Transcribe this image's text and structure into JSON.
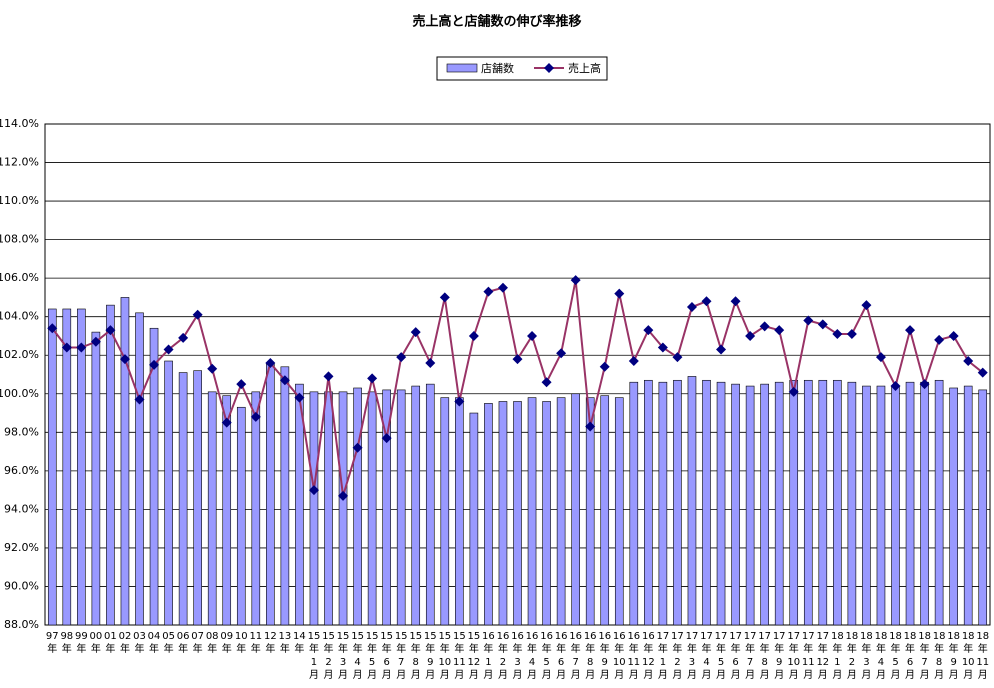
{
  "chart_data": {
    "type": "bar-line",
    "title": "売上高と店舗数の伸び率推移",
    "categories": [
      "97年",
      "98年",
      "99年",
      "00年",
      "01年",
      "02年",
      "03年",
      "04年",
      "05年",
      "06年",
      "07年",
      "08年",
      "09年",
      "10年",
      "11年",
      "12年",
      "13年",
      "14年",
      "15年1月",
      "15年2月",
      "15年3月",
      "15年4月",
      "15年5月",
      "15年6月",
      "15年7月",
      "15年8月",
      "15年9月",
      "15年10月",
      "15年11月",
      "15年12月",
      "16年1月",
      "16年2月",
      "16年3月",
      "16年4月",
      "16年5月",
      "16年6月",
      "16年7月",
      "16年8月",
      "16年9月",
      "16年10月",
      "16年11月",
      "16年12月",
      "17年1月",
      "17年2月",
      "17年3月",
      "17年4月",
      "17年5月",
      "17年6月",
      "17年7月",
      "17年8月",
      "17年9月",
      "17年10月",
      "17年11月",
      "17年12月",
      "18年1月",
      "18年2月",
      "18年3月",
      "18年4月",
      "18年5月",
      "18年6月",
      "18年7月",
      "18年8月",
      "18年9月",
      "18年10月",
      "18年11月"
    ],
    "series": [
      {
        "name": "店舗数",
        "kind": "bar",
        "color": "#9999ff",
        "values": [
          104.4,
          104.4,
          104.4,
          103.2,
          104.6,
          105.0,
          104.2,
          103.4,
          101.7,
          101.1,
          101.2,
          100.1,
          99.9,
          99.3,
          100.1,
          101.6,
          101.4,
          100.5,
          100.1,
          100.1,
          100.1,
          100.3,
          100.1,
          100.2,
          100.2,
          100.4,
          100.5,
          99.8,
          99.8,
          99.0,
          99.5,
          99.6,
          99.6,
          99.8,
          99.6,
          99.8,
          100.0,
          99.8,
          99.9,
          99.8,
          100.6,
          100.7,
          100.6,
          100.7,
          100.9,
          100.7,
          100.6,
          100.5,
          100.4,
          100.5,
          100.6,
          100.7,
          100.7,
          100.7,
          100.7,
          100.6,
          100.4,
          100.4,
          100.4,
          100.6,
          100.6,
          100.7,
          100.3,
          100.4,
          100.2
        ]
      },
      {
        "name": "売上高",
        "kind": "line",
        "color": "#993366",
        "marker_color": "#000080",
        "values": [
          103.4,
          102.4,
          102.4,
          102.7,
          103.3,
          101.8,
          99.7,
          101.5,
          102.3,
          102.9,
          104.1,
          101.3,
          98.5,
          100.5,
          98.8,
          101.6,
          100.7,
          99.8,
          95.0,
          100.9,
          94.7,
          97.2,
          100.8,
          97.7,
          101.9,
          103.2,
          101.6,
          105.0,
          99.6,
          103.0,
          105.3,
          105.5,
          101.8,
          103.0,
          100.6,
          102.1,
          105.9,
          98.3,
          101.4,
          105.2,
          101.7,
          103.3,
          102.4,
          101.9,
          104.5,
          104.8,
          102.3,
          104.8,
          103.0,
          103.5,
          103.3,
          100.1,
          103.8,
          103.6,
          103.1,
          103.1,
          104.6,
          101.9,
          100.4,
          103.3,
          100.5,
          102.8,
          103.0,
          101.7,
          101.1
        ]
      }
    ],
    "ylim": [
      88,
      114
    ],
    "yticks": [
      {
        "value": 88,
        "label": "88.0%"
      },
      {
        "value": 90,
        "label": "90.0%"
      },
      {
        "value": 92,
        "label": "92.0%"
      },
      {
        "value": 94,
        "label": "94.0%"
      },
      {
        "value": 96,
        "label": "96.0%"
      },
      {
        "value": 98,
        "label": "98.0%"
      },
      {
        "value": 100,
        "label": "100.0%"
      },
      {
        "value": 102,
        "label": "102.0%"
      },
      {
        "value": 104,
        "label": "104.0%"
      },
      {
        "value": 106,
        "label": "106.0%"
      },
      {
        "value": 108,
        "label": "108.0%"
      },
      {
        "value": 110,
        "label": "110.0%"
      },
      {
        "value": 112,
        "label": "112.0%"
      },
      {
        "value": 114,
        "label": "114.0%"
      }
    ],
    "grid": true
  }
}
